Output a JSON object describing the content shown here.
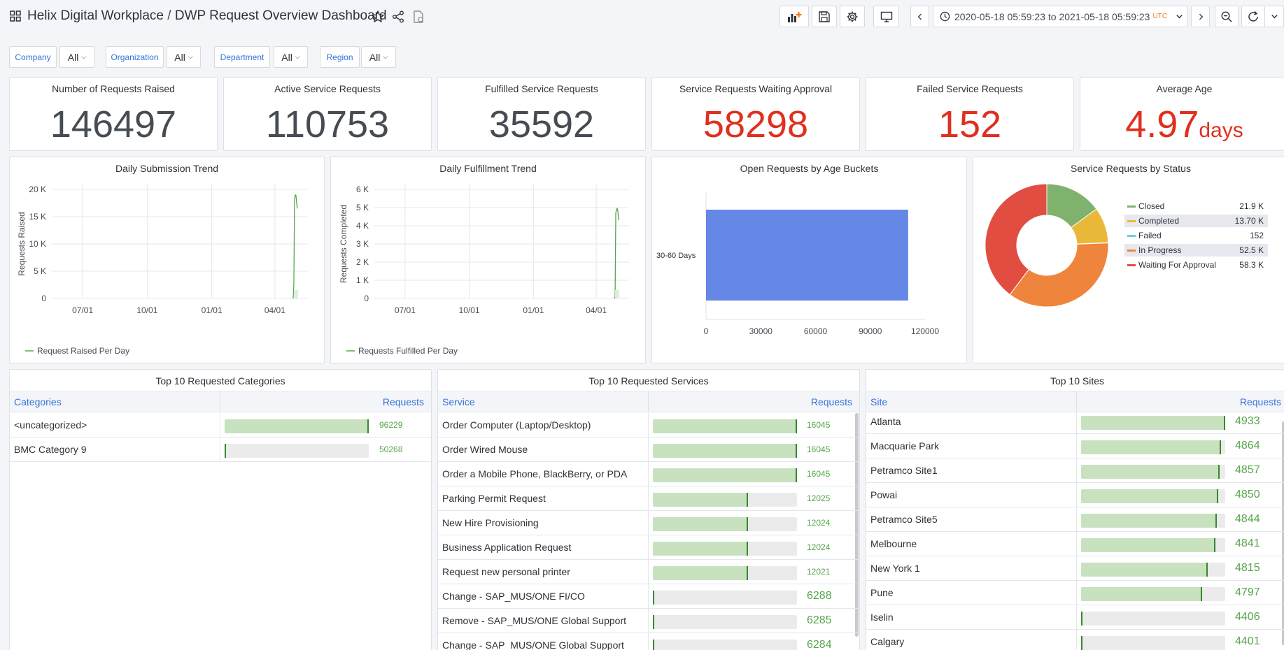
{
  "header": {
    "title_app": "Helix Digital Workplace",
    "title_sep": " / ",
    "title_dashboard": "DWP Request Overview Dashboard",
    "time_range": "2020-05-18 05:59:23 to 2021-05-18 05:59:23",
    "time_zone": "UTC"
  },
  "variables": [
    {
      "label": "Company",
      "value": "All"
    },
    {
      "label": "Organization",
      "value": "All"
    },
    {
      "label": "Department",
      "value": "All"
    },
    {
      "label": "Region",
      "value": "All"
    }
  ],
  "stats": [
    {
      "title": "Number of Requests Raised",
      "value": "146497",
      "unit": "",
      "color": "#464c54"
    },
    {
      "title": "Active Service Requests",
      "value": "110753",
      "unit": "",
      "color": "#464c54"
    },
    {
      "title": "Fulfilled Service Requests",
      "value": "35592",
      "unit": "",
      "color": "#464c54"
    },
    {
      "title": "Service Requests Waiting Approval",
      "value": "58298",
      "unit": "",
      "color": "#e02f1e"
    },
    {
      "title": "Failed Service Requests",
      "value": "152",
      "unit": "",
      "color": "#e02f1e"
    },
    {
      "title": "Average Age",
      "value": "4.97",
      "unit": "days",
      "color": "#e02f1e"
    }
  ],
  "chart_data": [
    {
      "type": "line",
      "title": "Daily Submission Trend",
      "ylabel": "Requests Raised",
      "xticks": [
        "07/01",
        "10/01",
        "01/01",
        "04/01"
      ],
      "yticks": [
        "0",
        "5 K",
        "10 K",
        "15 K",
        "20 K"
      ],
      "ylim": [
        0,
        20000
      ],
      "series": [
        {
          "name": "Request Raised Per Day",
          "color": "#56a64b",
          "x": [
            "2021-04-27",
            "2021-04-28",
            "2021-04-29",
            "2021-04-30",
            "2021-05-01",
            "2021-05-02",
            "2021-05-03"
          ],
          "y": [
            0,
            2500,
            18000,
            19000,
            18900,
            17500,
            16500
          ]
        }
      ]
    },
    {
      "type": "line",
      "title": "Daily Fulfillment Trend",
      "ylabel": "Requests Completed",
      "xticks": [
        "07/01",
        "10/01",
        "01/01",
        "04/01"
      ],
      "yticks": [
        "0",
        "1 K",
        "2 K",
        "3 K",
        "4 K",
        "5 K",
        "6 K"
      ],
      "ylim": [
        0,
        6000
      ],
      "series": [
        {
          "name": "Requests Fulfilled Per Day",
          "color": "#56a64b",
          "x": [
            "2021-04-27",
            "2021-04-28",
            "2021-04-29",
            "2021-04-30",
            "2021-05-01",
            "2021-05-02",
            "2021-05-03"
          ],
          "y": [
            0,
            100,
            4700,
            4900,
            4950,
            4800,
            4300
          ]
        }
      ]
    },
    {
      "type": "bar",
      "title": "Open Requests by Age Buckets",
      "orientation": "horizontal",
      "categories": [
        "30-60 Days"
      ],
      "values": [
        110753
      ],
      "xticks": [
        "0",
        "30000",
        "60000",
        "90000",
        "120000"
      ],
      "xlim": [
        0,
        120000
      ],
      "color": "#6587e6"
    },
    {
      "type": "pie",
      "title": "Service Requests by Status",
      "donut": true,
      "legend_placement": "right",
      "slices": [
        {
          "name": "Closed",
          "value": 21900,
          "label": "21.9 K",
          "color": "#7eb26d"
        },
        {
          "name": "Completed",
          "value": 13700,
          "label": "13.70 K",
          "color": "#eab839"
        },
        {
          "name": "Failed",
          "value": 152,
          "label": "152",
          "color": "#6ed0e0"
        },
        {
          "name": "In Progress",
          "value": 52500,
          "label": "52.5 K",
          "color": "#ef843c"
        },
        {
          "name": "Waiting For Approval",
          "value": 58300,
          "label": "58.3 K",
          "color": "#e24d42"
        }
      ]
    }
  ],
  "tables": [
    {
      "title": "Top 10 Requested Categories",
      "col_name": "Categories",
      "col_value": "Requests",
      "rows": [
        {
          "name": "<uncategorized>",
          "value": "96229",
          "fraction": 1.0
        },
        {
          "name": "BMC Category 9",
          "value": "50268",
          "fraction": 0.01
        }
      ]
    },
    {
      "title": "Top 10 Requested Services",
      "col_name": "Service",
      "col_value": "Requests",
      "rows": [
        {
          "name": "Order Computer (Laptop/Desktop)",
          "value": "16045",
          "fraction": 1.0
        },
        {
          "name": "Order Wired Mouse",
          "value": "16045",
          "fraction": 1.0
        },
        {
          "name": "Order a Mobile Phone, BlackBerry, or PDA",
          "value": "16045",
          "fraction": 1.0
        },
        {
          "name": "Parking Permit Request",
          "value": "12025",
          "fraction": 0.66
        },
        {
          "name": "New Hire Provisioning",
          "value": "12024",
          "fraction": 0.66
        },
        {
          "name": "Business Application Request",
          "value": "12024",
          "fraction": 0.66
        },
        {
          "name": "Request new personal printer",
          "value": "12021",
          "fraction": 0.66
        },
        {
          "name": "Change - SAP_MUS/ONE FI/CO",
          "value": "6288",
          "fraction": 0.01
        },
        {
          "name": "Remove - SAP_MUS/ONE Global Support",
          "value": "6285",
          "fraction": 0.01
        },
        {
          "name": "Change - SAP_MUS/ONE Global Support",
          "value": "6284",
          "fraction": 0.01
        }
      ]
    },
    {
      "title": "Top 10 Sites",
      "col_name": "Site",
      "col_value": "Requests",
      "rows": [
        {
          "name": "Atlanta",
          "value": "4933",
          "fraction": 1.0
        },
        {
          "name": "Macquarie Park",
          "value": "4864",
          "fraction": 0.97
        },
        {
          "name": "Petramco Site1",
          "value": "4857",
          "fraction": 0.96
        },
        {
          "name": "Powai",
          "value": "4850",
          "fraction": 0.95
        },
        {
          "name": "Petramco Site5",
          "value": "4844",
          "fraction": 0.94
        },
        {
          "name": "Melbourne",
          "value": "4841",
          "fraction": 0.93
        },
        {
          "name": "New York 1",
          "value": "4815",
          "fraction": 0.88
        },
        {
          "name": "Pune",
          "value": "4797",
          "fraction": 0.84
        },
        {
          "name": "Iselin",
          "value": "4406",
          "fraction": 0.01
        },
        {
          "name": "Calgary",
          "value": "4401",
          "fraction": 0.01
        }
      ]
    }
  ]
}
